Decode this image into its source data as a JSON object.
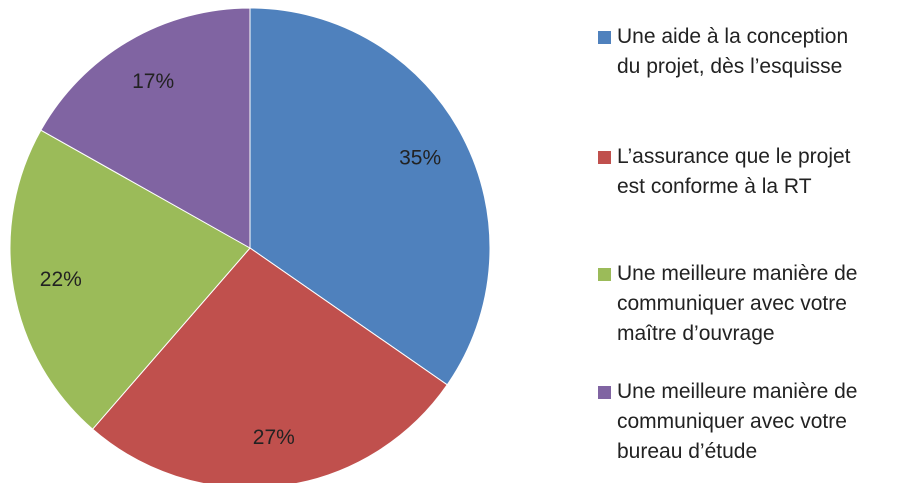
{
  "chart_data": {
    "type": "pie",
    "categories": [
      "Une aide à la conception du projet, dès l’esquisse",
      "L’assurance que le projet est conforme à la RT",
      "Une meilleure manière de communiquer avec votre maître d’ouvrage",
      "Une meilleure manière de communiquer avec votre bureau d’étude"
    ],
    "values": [
      35,
      27,
      22,
      17
    ],
    "value_labels": [
      "35%",
      "27%",
      "22%",
      "17%"
    ],
    "colors": [
      "#4f81bd",
      "#c0504d",
      "#9bbb59",
      "#8064a2"
    ],
    "legend": "right"
  }
}
